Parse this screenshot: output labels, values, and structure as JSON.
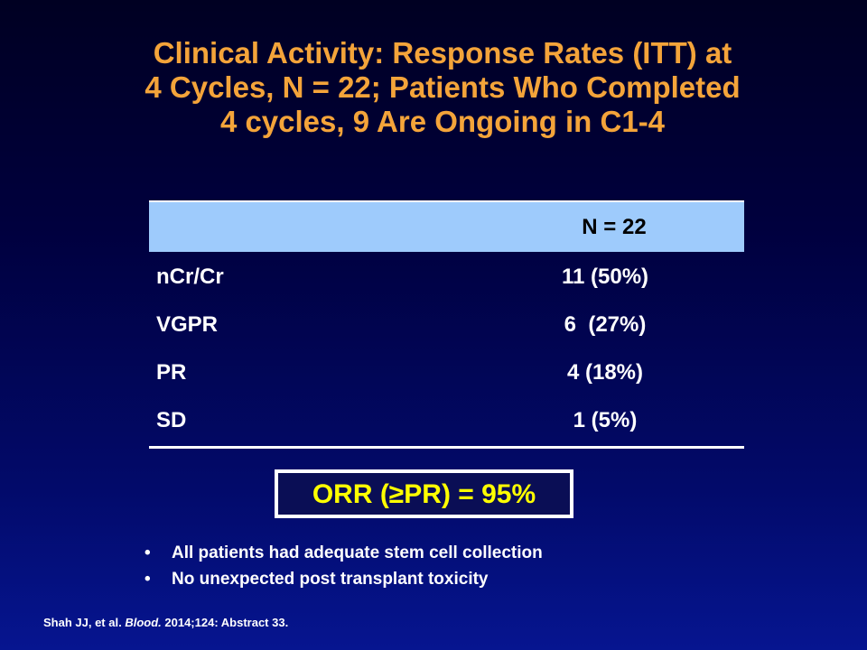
{
  "slide": {
    "title_lines": [
      "Clinical Activity: Response Rates (ITT) at",
      "4 Cycles, N = 22; Patients Who Completed",
      "4 cycles, 9 Are Ongoing in C1-4"
    ],
    "table": {
      "headers": [
        "",
        "N = 22"
      ],
      "rows": [
        {
          "label": "nCr/Cr",
          "value": "11 (50%)"
        },
        {
          "label": "VGPR",
          "value": "6  (27%)"
        },
        {
          "label": "PR",
          "value": "4 (18%)"
        },
        {
          "label": "SD",
          "value": "1 (5%)"
        }
      ]
    },
    "orr_box": "ORR (≥PR) = 95%",
    "bullets": [
      "All patients had adequate stem cell collection",
      "No unexpected post transplant toxicity"
    ],
    "bullet_glyph": "•",
    "citation": {
      "prefix": "Shah JJ, et al. ",
      "journal": "Blood.",
      "suffix": " 2014;124: Abstract 33."
    }
  },
  "colors": {
    "title": "#f4a43a",
    "header_fill": "#9ecbfc",
    "orr_text": "#ffff00",
    "background_top": "#000022",
    "background_bottom": "#061590"
  }
}
